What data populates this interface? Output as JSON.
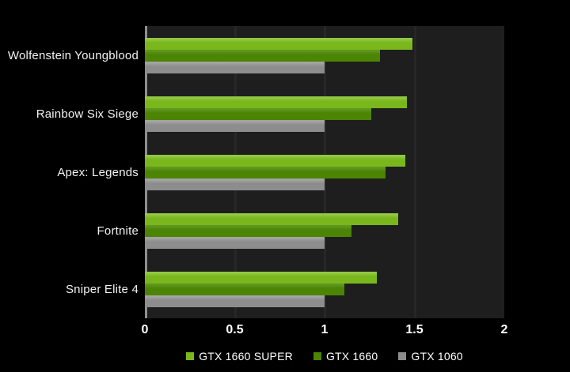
{
  "chart_data": {
    "type": "bar",
    "orientation": "horizontal",
    "title": "",
    "xlabel": "",
    "ylabel": "",
    "xlim": [
      0,
      2
    ],
    "x_ticks": [
      {
        "label": "0",
        "value": 0
      },
      {
        "label": "0.5",
        "value": 0.5
      },
      {
        "label": "1",
        "value": 1
      },
      {
        "label": "1.5",
        "value": 1.5
      },
      {
        "label": "2",
        "value": 2
      }
    ],
    "grid": "vertical",
    "legend_position": "bottom-center",
    "categories": [
      "Wolfenstein Youngblood",
      "Rainbow Six Siege",
      "Apex: Legends",
      "Fortnite",
      "Sniper Elite 4"
    ],
    "series": [
      {
        "name": "GTX 1660 SUPER",
        "color": "#79b71d",
        "highlight": "#92c843",
        "values": [
          1.49,
          1.46,
          1.45,
          1.41,
          1.29
        ]
      },
      {
        "name": "GTX 1660",
        "color": "#4c8404",
        "highlight": "#5f971e",
        "values": [
          1.31,
          1.26,
          1.34,
          1.15,
          1.11
        ]
      },
      {
        "name": "GTX 1060",
        "color": "#8d8d8d",
        "highlight": "#a4a4a4",
        "values": [
          1.0,
          1.0,
          1.0,
          1.0,
          1.0
        ]
      }
    ]
  },
  "colors": {
    "page_background": "#000000",
    "plot_background": "#1e1e1e",
    "gridline": "#272727",
    "axis_line": "#8f8f8f",
    "text": "#ffffff"
  }
}
